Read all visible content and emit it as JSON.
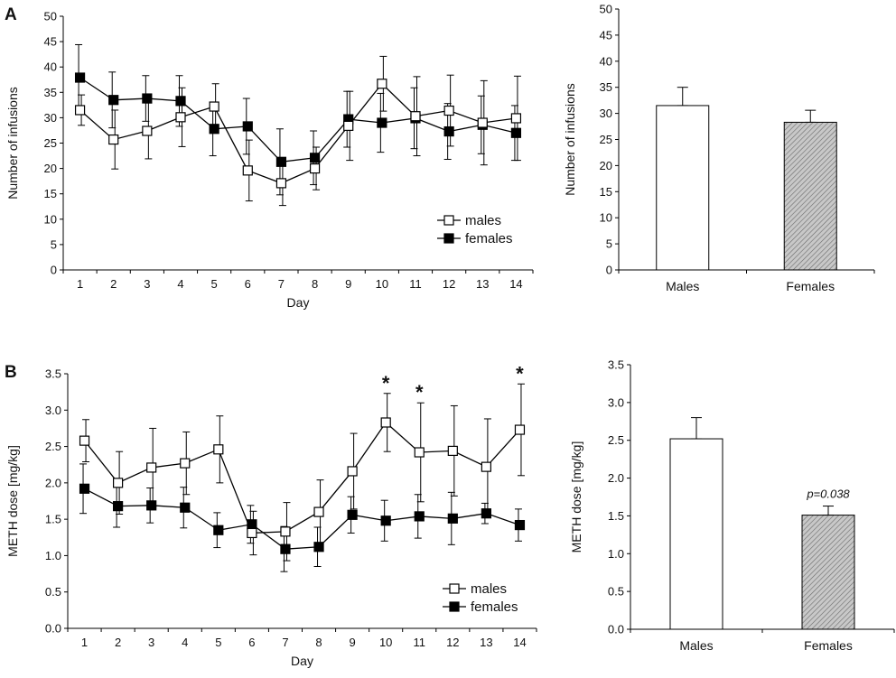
{
  "figure": {
    "panel_a_label": "A",
    "panel_b_label": "B"
  },
  "colors": {
    "line": "#000000",
    "open_fill": "#ffffff",
    "filled": "#000000",
    "hatch_fill": "#c8c8c8"
  },
  "chart_data": [
    {
      "id": "a_line",
      "type": "line",
      "xlabel": "Day",
      "ylabel": "Number of infusions",
      "categories": [
        "1",
        "2",
        "3",
        "4",
        "5",
        "6",
        "7",
        "8",
        "9",
        "10",
        "11",
        "12",
        "13",
        "14"
      ],
      "ylim": [
        0,
        50
      ],
      "yticks": [
        "0",
        "5",
        "10",
        "15",
        "20",
        "25",
        "30",
        "35",
        "40",
        "45",
        "50"
      ],
      "legend_position": "bottom-right",
      "series": [
        {
          "name": "males",
          "marker": "open-square",
          "values": [
            31.5,
            25.7,
            27.4,
            30.1,
            32.2,
            19.6,
            17.1,
            20.0,
            28.4,
            36.7,
            30.3,
            31.4,
            29.0,
            29.9
          ],
          "err": [
            3.0,
            5.8,
            5.5,
            5.8,
            4.5,
            6.0,
            4.4,
            4.2,
            6.8,
            5.4,
            7.8,
            7.0,
            8.3,
            8.3
          ]
        },
        {
          "name": "females",
          "marker": "filled-square",
          "values": [
            37.9,
            33.5,
            33.8,
            33.3,
            27.8,
            28.3,
            21.3,
            22.1,
            29.7,
            29.0,
            29.9,
            27.3,
            28.6,
            27.0
          ],
          "err": [
            6.5,
            5.5,
            4.5,
            5.0,
            5.3,
            5.5,
            6.5,
            5.3,
            5.5,
            5.8,
            6.0,
            5.5,
            5.7,
            5.4
          ]
        }
      ]
    },
    {
      "id": "a_bar",
      "type": "bar",
      "xlabel": "",
      "ylabel": "Number of infusions",
      "categories": [
        "Males",
        "Females"
      ],
      "ylim": [
        0,
        50
      ],
      "yticks": [
        "0",
        "5",
        "10",
        "15",
        "20",
        "25",
        "30",
        "35",
        "40",
        "45",
        "50"
      ],
      "values": [
        31.5,
        28.3
      ],
      "err": [
        3.5,
        2.3
      ],
      "styles": [
        "open",
        "hatched"
      ]
    },
    {
      "id": "b_line",
      "type": "line",
      "xlabel": "Day",
      "ylabel": "METH dose [mg/kg]",
      "categories": [
        "1",
        "2",
        "3",
        "4",
        "5",
        "6",
        "7",
        "8",
        "9",
        "10",
        "11",
        "12",
        "13",
        "14"
      ],
      "ylim": [
        0,
        3.5
      ],
      "yticks": [
        "0.0",
        "0.5",
        "1.0",
        "1.5",
        "2.0",
        "2.5",
        "3.0",
        "3.5"
      ],
      "legend_position": "bottom-right",
      "significance": [
        {
          "day": "10",
          "label": "*"
        },
        {
          "day": "11",
          "label": "*"
        },
        {
          "day": "14",
          "label": "*"
        }
      ],
      "series": [
        {
          "name": "males",
          "marker": "open-square",
          "values": [
            2.58,
            2.0,
            2.21,
            2.27,
            2.46,
            1.31,
            1.33,
            1.6,
            2.16,
            2.83,
            2.42,
            2.44,
            2.22,
            2.73
          ],
          "err": [
            0.29,
            0.43,
            0.54,
            0.43,
            0.46,
            0.3,
            0.4,
            0.44,
            0.52,
            0.4,
            0.68,
            0.62,
            0.66,
            0.63
          ]
        },
        {
          "name": "females",
          "marker": "filled-square",
          "values": [
            1.92,
            1.68,
            1.69,
            1.66,
            1.35,
            1.43,
            1.09,
            1.12,
            1.56,
            1.48,
            1.54,
            1.51,
            1.58,
            1.42
          ],
          "err": [
            0.34,
            0.29,
            0.24,
            0.28,
            0.24,
            0.26,
            0.31,
            0.27,
            0.25,
            0.28,
            0.3,
            0.36,
            0.14,
            0.22
          ]
        }
      ]
    },
    {
      "id": "b_bar",
      "type": "bar",
      "xlabel": "",
      "ylabel": "METH dose [mg/kg]",
      "categories": [
        "Males",
        "Females"
      ],
      "ylim": [
        0,
        3.5
      ],
      "yticks": [
        "0.0",
        "0.5",
        "1.0",
        "1.5",
        "2.0",
        "2.5",
        "3.0",
        "3.5"
      ],
      "values": [
        2.52,
        1.51
      ],
      "err": [
        0.28,
        0.12
      ],
      "styles": [
        "open",
        "hatched"
      ],
      "annotation": "p=0.038"
    }
  ]
}
